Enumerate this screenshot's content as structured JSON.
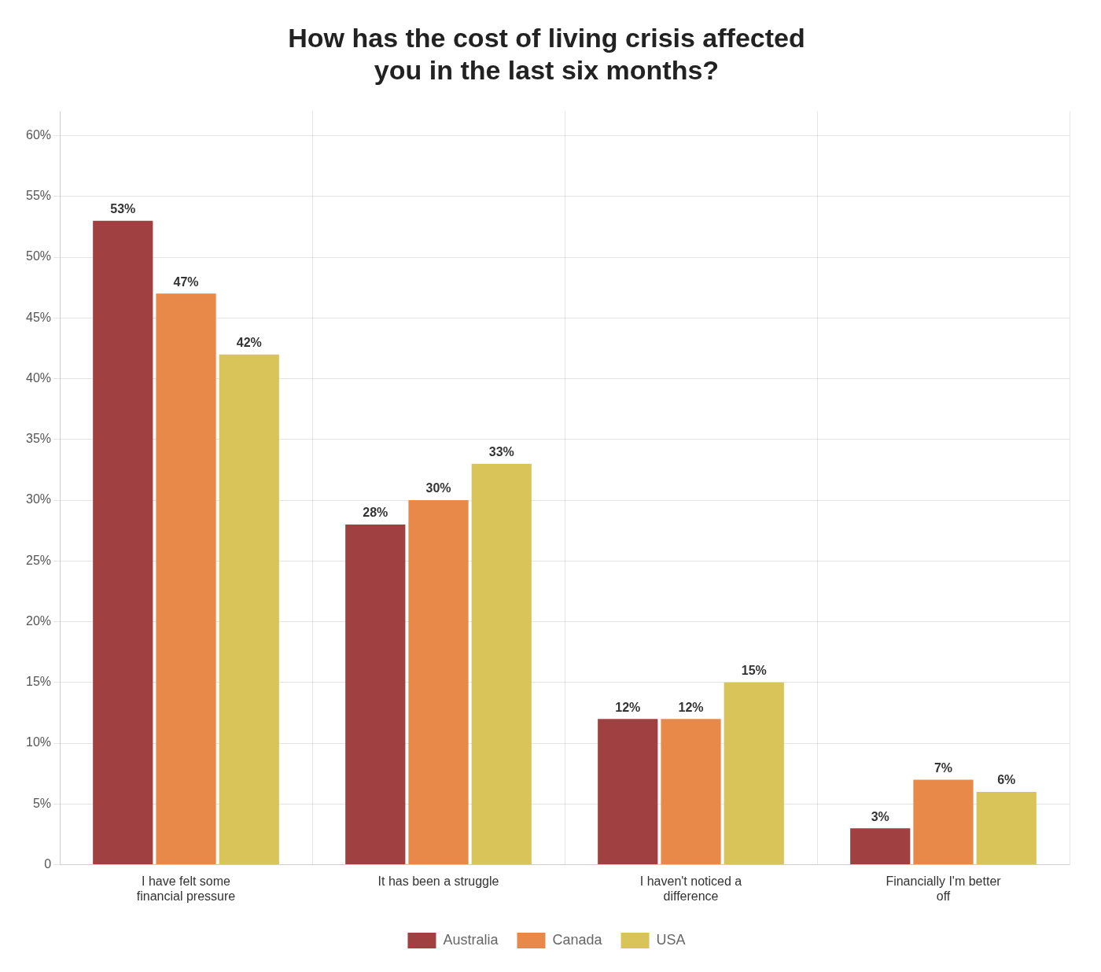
{
  "chart_data": {
    "type": "bar",
    "title": "How has the cost of living crisis affected\nyou in the last six months?",
    "categories": [
      "I have felt some\nfinancial pressure",
      "It has been a struggle",
      "I haven't noticed a\ndifference",
      "Financially I'm better\noff"
    ],
    "series": [
      {
        "name": "Australia",
        "color": "#A04040",
        "values": [
          53,
          28,
          12,
          3
        ],
        "value_labels": [
          "53%",
          "28%",
          "12%",
          "3%"
        ]
      },
      {
        "name": "Canada",
        "color": "#E8894A",
        "values": [
          47,
          30,
          12,
          7
        ],
        "value_labels": [
          "47%",
          "30%",
          "12%",
          "7%"
        ]
      },
      {
        "name": "USA",
        "color": "#D9C45A",
        "values": [
          42,
          33,
          15,
          6
        ],
        "value_labels": [
          "42%",
          "33%",
          "15%",
          "6%"
        ]
      }
    ],
    "ylim": [
      0,
      62
    ],
    "yticks": [
      0,
      {
        "value": 5,
        "label": "5%"
      },
      {
        "value": 10,
        "label": "10%"
      },
      {
        "value": 15,
        "label": "15%"
      },
      {
        "value": 20,
        "label": "20%"
      },
      {
        "value": 25,
        "label": "25%"
      },
      {
        "value": 30,
        "label": "30%"
      },
      {
        "value": 35,
        "label": "35%"
      },
      {
        "value": 40,
        "label": "40%"
      },
      {
        "value": 45,
        "label": "45%"
      },
      {
        "value": 50,
        "label": "50%"
      },
      {
        "value": 55,
        "label": "55%"
      },
      {
        "value": 60,
        "label": "60%"
      }
    ],
    "grid": true,
    "legend": "bottom",
    "data_labels": true
  }
}
